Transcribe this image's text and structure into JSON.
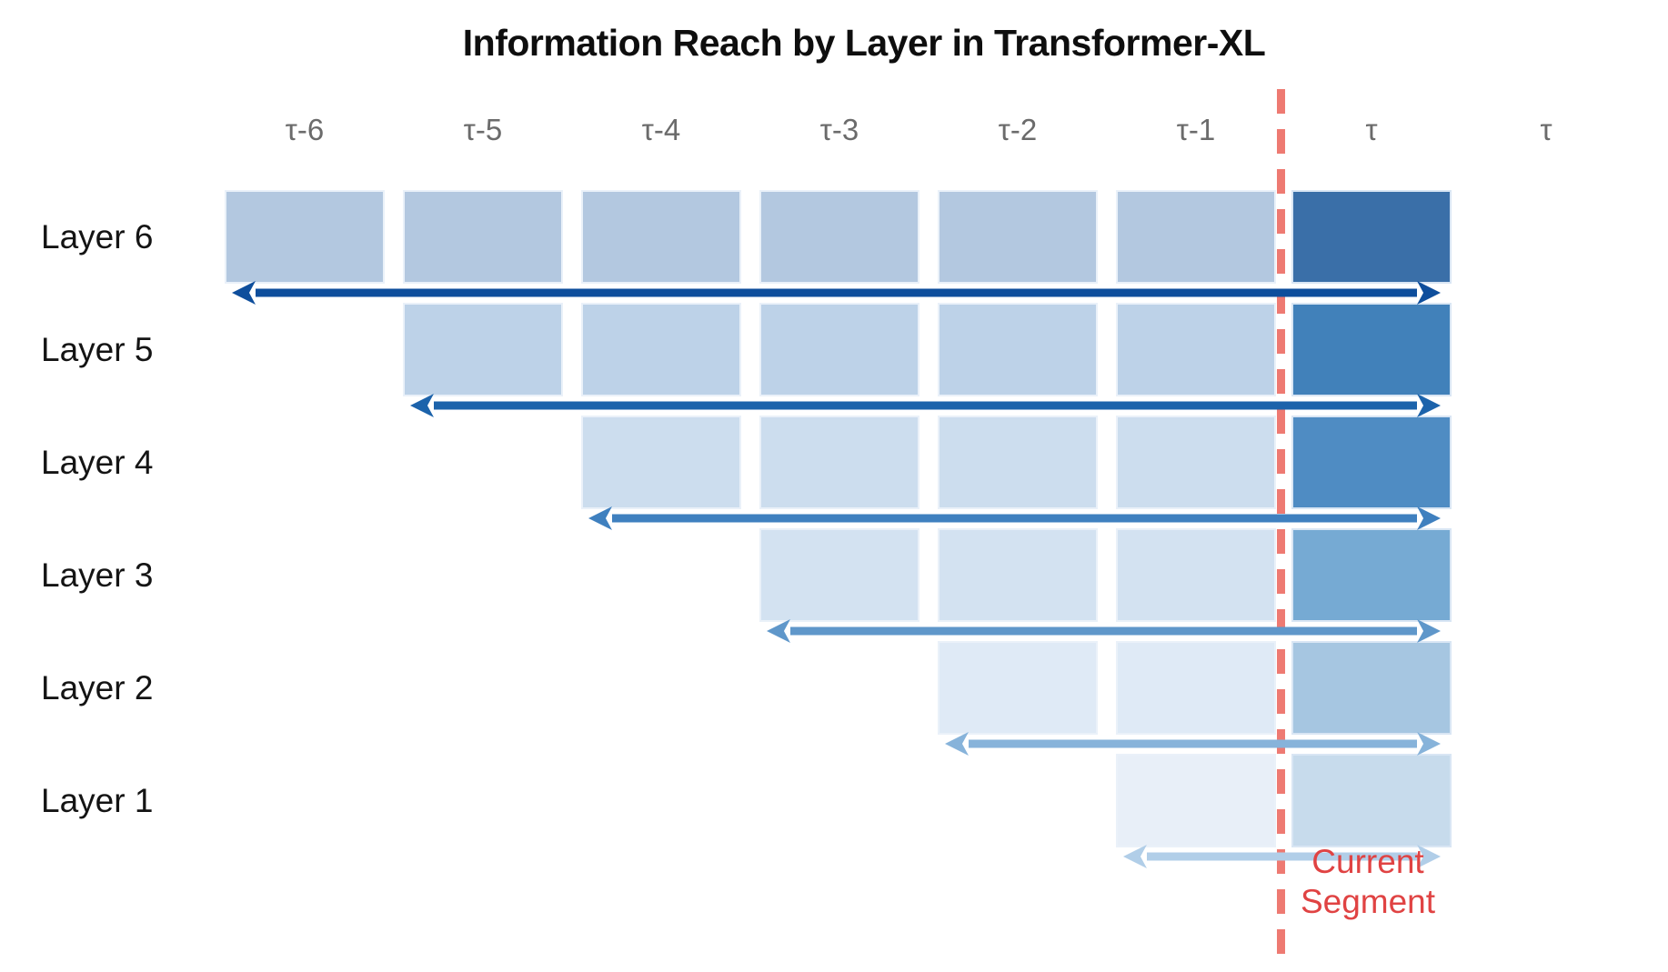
{
  "title": "Information Reach by Layer in Transformer-XL",
  "column_headers": [
    "τ-6",
    "τ-5",
    "τ-4",
    "τ-3",
    "τ-2",
    "τ-1",
    "τ",
    "τ"
  ],
  "header_text_color": "#6b6b6b",
  "rows": [
    {
      "label": "Layer 6",
      "start_column_index": 0,
      "reach_segments": 7,
      "memory_color": "#b3c8e0",
      "current_color": "#3a6fa8",
      "arrow_color": "#0e4e9c"
    },
    {
      "label": "Layer 5",
      "start_column_index": 1,
      "reach_segments": 6,
      "memory_color": "#bdd2e8",
      "current_color": "#4181ba",
      "arrow_color": "#1c63ab"
    },
    {
      "label": "Layer 4",
      "start_column_index": 2,
      "reach_segments": 5,
      "memory_color": "#ccddee",
      "current_color": "#4f8cc3",
      "arrow_color": "#3f80bf"
    },
    {
      "label": "Layer 3",
      "start_column_index": 3,
      "reach_segments": 4,
      "memory_color": "#d3e2f1",
      "current_color": "#76aad3",
      "arrow_color": "#5f97ca"
    },
    {
      "label": "Layer 2",
      "start_column_index": 4,
      "reach_segments": 3,
      "memory_color": "#dfeaf6",
      "current_color": "#a6c6e1",
      "arrow_color": "#87b3da"
    },
    {
      "label": "Layer 1",
      "start_column_index": 5,
      "reach_segments": 2,
      "memory_color": "#e8eff8",
      "current_color": "#c7dbec",
      "arrow_color": "#b1cee8"
    }
  ],
  "current_segment_label": {
    "line1": "Current",
    "line2": "Segment",
    "text_color": "#e04343",
    "divider_color": "#ee7a72"
  }
}
